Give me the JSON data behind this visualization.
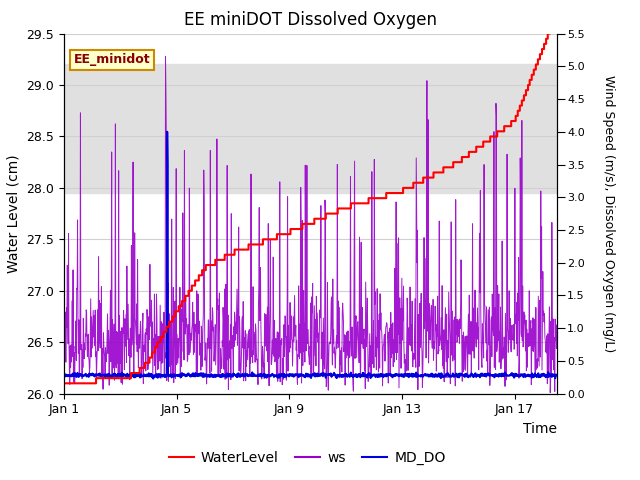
{
  "title": "EE miniDOT Dissolved Oxygen",
  "xlabel": "Time",
  "ylabel_left": "Water Level (cm)",
  "ylabel_right": "Wind Speed (m/s), Dissolved Oxygen (mg/L)",
  "ylim_left": [
    26.0,
    29.5
  ],
  "ylim_right": [
    0.0,
    5.5
  ],
  "yticks_left": [
    26.0,
    26.5,
    27.0,
    27.5,
    28.0,
    28.5,
    29.0,
    29.5
  ],
  "yticks_right": [
    0.0,
    0.5,
    1.0,
    1.5,
    2.0,
    2.5,
    3.0,
    3.5,
    4.0,
    4.5,
    5.0,
    5.5
  ],
  "xtick_positions": [
    0,
    4,
    8,
    12,
    16
  ],
  "xtick_labels": [
    "Jan 1",
    "Jan 5",
    "Jan 9",
    "Jan 13",
    "Jan 17"
  ],
  "xlim": [
    0,
    17.5
  ],
  "background_shade": [
    27.95,
    29.2
  ],
  "sensor_label": "EE_minidot",
  "legend_entries": [
    "WaterLevel",
    "ws",
    "MD_DO"
  ],
  "wl_color": "#ff0000",
  "ws_color": "#9900cc",
  "do_color": "#0000dd",
  "grid_color": "#d0d0d0",
  "seed": 42,
  "n_pts": 1200
}
